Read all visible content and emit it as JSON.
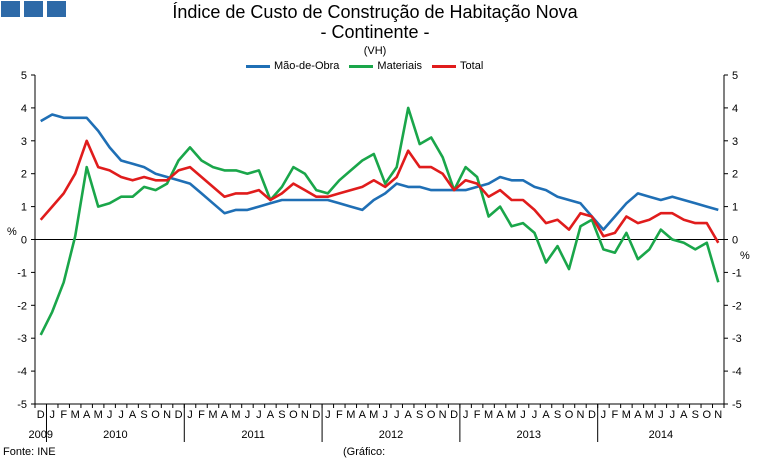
{
  "title": "Índice de Custo de Construção de Habitação Nova",
  "subtitle": "- Continente -",
  "unit_note": "(VH)",
  "ylabel": "%",
  "source": "Fonte: INE",
  "grafico_note": "(Gráfico:",
  "colors": {
    "mao": "#1f6fb5",
    "mat": "#1aa64a",
    "tot": "#e01c1c",
    "logo": "#2e6aa8"
  },
  "chart_data": {
    "type": "line",
    "ylim": [
      -5,
      5
    ],
    "yticks": [
      "5",
      "4",
      "3",
      "2",
      "1",
      "0",
      "-1",
      "-2",
      "-3",
      "-4",
      "-5"
    ],
    "month_labels": [
      "D",
      "J",
      "F",
      "M",
      "A",
      "M",
      "J",
      "J",
      "A",
      "S",
      "O",
      "N",
      "D",
      "J",
      "F",
      "M",
      "A",
      "M",
      "J",
      "J",
      "A",
      "S",
      "O",
      "N",
      "D",
      "J",
      "F",
      "M",
      "A",
      "M",
      "J",
      "J",
      "A",
      "S",
      "O",
      "N",
      "D",
      "J",
      "F",
      "M",
      "A",
      "M",
      "J",
      "J",
      "A",
      "S",
      "O",
      "N",
      "D",
      "J",
      "F",
      "M",
      "A",
      "M",
      "J",
      "J",
      "A",
      "S",
      "O",
      "N"
    ],
    "year_labels": [
      {
        "label": "2009",
        "index": 0
      },
      {
        "label": "2010",
        "index": 6.5
      },
      {
        "label": "2011",
        "index": 18.5
      },
      {
        "label": "2012",
        "index": 30.5
      },
      {
        "label": "2013",
        "index": 42.5
      },
      {
        "label": "2014",
        "index": 54
      }
    ],
    "legend_position": "top-center",
    "grid": false,
    "series": [
      {
        "name": "Mão-de-Obra",
        "key": "mao",
        "values": [
          3.6,
          3.8,
          3.7,
          3.7,
          3.7,
          3.3,
          2.8,
          2.4,
          2.3,
          2.2,
          2.0,
          1.9,
          1.8,
          1.7,
          1.4,
          1.1,
          0.8,
          0.9,
          0.9,
          1.0,
          1.1,
          1.2,
          1.2,
          1.2,
          1.2,
          1.2,
          1.1,
          1.0,
          0.9,
          1.2,
          1.4,
          1.7,
          1.6,
          1.6,
          1.5,
          1.5,
          1.5,
          1.5,
          1.6,
          1.7,
          1.9,
          1.8,
          1.8,
          1.6,
          1.5,
          1.3,
          1.2,
          1.1,
          0.7,
          0.3,
          0.7,
          1.1,
          1.4,
          1.3,
          1.2,
          1.3,
          1.2,
          1.1,
          1.0,
          0.9
        ]
      },
      {
        "name": "Materiais",
        "key": "mat",
        "values": [
          -2.9,
          -2.2,
          -1.3,
          0.1,
          2.2,
          1.0,
          1.1,
          1.3,
          1.3,
          1.6,
          1.5,
          1.7,
          2.4,
          2.8,
          2.4,
          2.2,
          2.1,
          2.1,
          2.0,
          2.1,
          1.2,
          1.6,
          2.2,
          2.0,
          1.5,
          1.4,
          1.8,
          2.1,
          2.4,
          2.6,
          1.7,
          2.2,
          4.0,
          2.9,
          3.1,
          2.5,
          1.5,
          2.2,
          1.9,
          0.7,
          1.0,
          0.4,
          0.5,
          0.2,
          -0.7,
          -0.2,
          -0.9,
          0.4,
          0.6,
          -0.3,
          -0.4,
          0.2,
          -0.6,
          -0.3,
          0.3,
          0.0,
          -0.1,
          -0.3,
          -0.1,
          -1.3
        ]
      },
      {
        "name": "Total",
        "key": "tot",
        "values": [
          0.6,
          1.0,
          1.4,
          2.0,
          3.0,
          2.2,
          2.1,
          1.9,
          1.8,
          1.9,
          1.8,
          1.8,
          2.1,
          2.2,
          1.9,
          1.6,
          1.3,
          1.4,
          1.4,
          1.5,
          1.2,
          1.4,
          1.7,
          1.5,
          1.3,
          1.3,
          1.4,
          1.5,
          1.6,
          1.8,
          1.6,
          1.9,
          2.7,
          2.2,
          2.2,
          2.0,
          1.5,
          1.8,
          1.7,
          1.3,
          1.5,
          1.2,
          1.2,
          0.9,
          0.5,
          0.6,
          0.3,
          0.8,
          0.7,
          0.1,
          0.2,
          0.7,
          0.5,
          0.6,
          0.8,
          0.8,
          0.6,
          0.5,
          0.5,
          -0.1
        ]
      }
    ]
  }
}
